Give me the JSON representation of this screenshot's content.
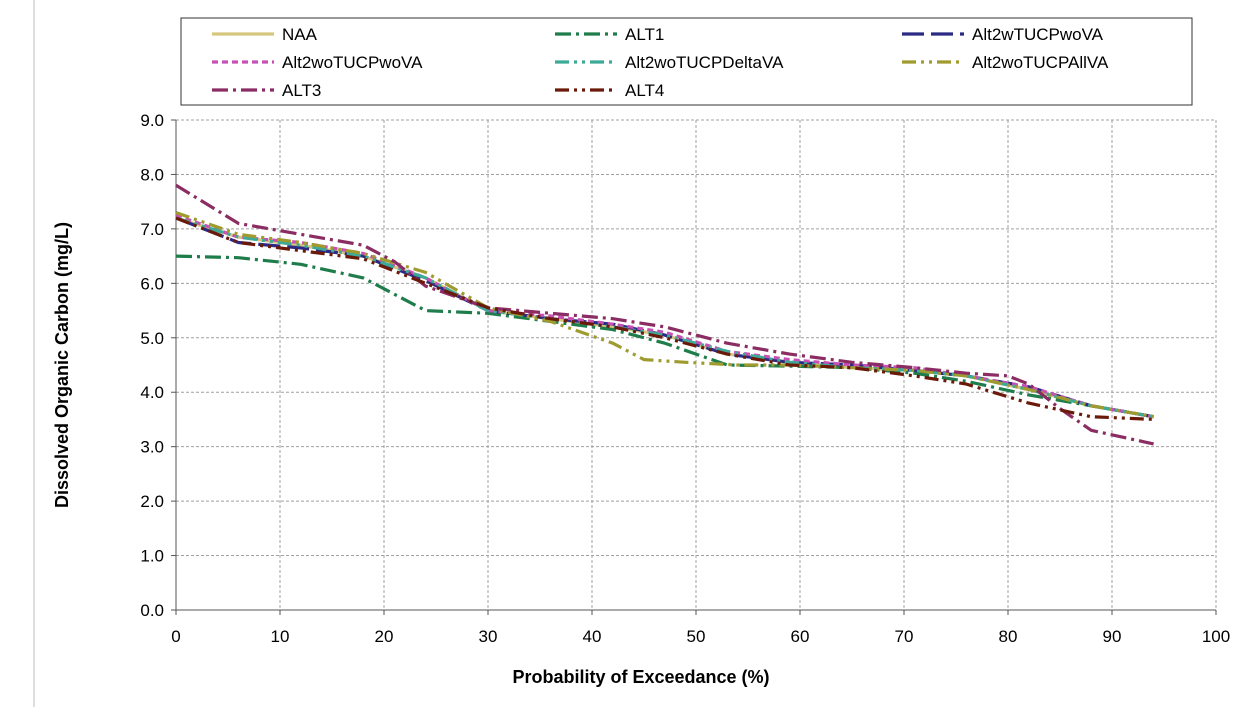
{
  "chart_data": {
    "type": "line",
    "title": "",
    "xlabel": "Probability of Exceedance (%)",
    "ylabel": "Dissolved Organic Carbon (mg/L)",
    "xlim": [
      0,
      100
    ],
    "ylim": [
      0,
      9
    ],
    "xticks": [
      "0",
      "10",
      "20",
      "30",
      "40",
      "50",
      "60",
      "70",
      "80",
      "90",
      "100"
    ],
    "yticks": [
      "0.0",
      "1.0",
      "2.0",
      "3.0",
      "4.0",
      "5.0",
      "6.0",
      "7.0",
      "8.0",
      "9.0"
    ],
    "grid": true,
    "legend_position": "top",
    "series": [
      {
        "name": "NAA",
        "color": "#d6c77e",
        "dash": "solid",
        "x": [
          0,
          6,
          12,
          18,
          24,
          30,
          36,
          42,
          47,
          53,
          59,
          65,
          71,
          76,
          82,
          88,
          94
        ],
        "y": [
          7.2,
          6.85,
          6.7,
          6.5,
          6.1,
          5.5,
          5.35,
          5.2,
          5.05,
          4.7,
          4.55,
          4.45,
          4.4,
          4.3,
          4.05,
          3.75,
          3.55
        ]
      },
      {
        "name": "ALT1",
        "color": "#1e7d4a",
        "dash": "dashdot",
        "x": [
          0,
          6,
          12,
          18,
          24,
          30,
          36,
          42,
          47,
          53,
          59,
          65,
          71,
          76,
          82,
          88,
          94
        ],
        "y": [
          6.5,
          6.47,
          6.35,
          6.1,
          5.5,
          5.45,
          5.3,
          5.15,
          4.9,
          4.5,
          4.48,
          4.45,
          4.35,
          4.2,
          3.95,
          3.75,
          3.55
        ]
      },
      {
        "name": "Alt2wTUCPwoVA",
        "color": "#2b2a84",
        "dash": "longdash",
        "x": [
          0,
          6,
          12,
          18,
          24,
          30,
          36,
          42,
          47,
          53,
          59,
          65,
          71,
          76,
          82,
          88,
          94
        ],
        "y": [
          7.2,
          6.75,
          6.65,
          6.5,
          6.05,
          5.5,
          5.35,
          5.25,
          5.05,
          4.7,
          4.55,
          4.5,
          4.4,
          4.3,
          4.1,
          3.75,
          3.55
        ]
      },
      {
        "name": "Alt2woTUCPwoVA",
        "color": "#c84fb5",
        "dash": "shortdash",
        "x": [
          0,
          6,
          12,
          18,
          24,
          30,
          36,
          42,
          47,
          53,
          59,
          65,
          71,
          76,
          82,
          88,
          94
        ],
        "y": [
          7.25,
          6.85,
          6.75,
          6.55,
          6.1,
          5.5,
          5.4,
          5.25,
          5.1,
          4.75,
          4.6,
          4.5,
          4.45,
          4.3,
          4.1,
          3.75,
          3.55
        ]
      },
      {
        "name": "Alt2woTUCPDeltaVA",
        "color": "#3daa97",
        "dash": "dashdotdot",
        "x": [
          0,
          6,
          12,
          18,
          24,
          30,
          36,
          42,
          47,
          53,
          59,
          65,
          71,
          76,
          82,
          88,
          94
        ],
        "y": [
          7.2,
          6.85,
          6.7,
          6.5,
          6.1,
          5.5,
          5.35,
          5.2,
          5.05,
          4.75,
          4.55,
          4.45,
          4.4,
          4.3,
          4.05,
          3.75,
          3.55
        ]
      },
      {
        "name": "Alt2woTUCPAllVA",
        "color": "#9f9b2f",
        "dash": "dashdotdot",
        "x": [
          0,
          6,
          12,
          18,
          24,
          30,
          36,
          42,
          45,
          49,
          54,
          59,
          65,
          71,
          76,
          82,
          88,
          94
        ],
        "y": [
          7.3,
          6.9,
          6.75,
          6.55,
          6.2,
          5.55,
          5.3,
          4.9,
          4.6,
          4.55,
          4.5,
          4.5,
          4.45,
          4.4,
          4.3,
          4.05,
          3.75,
          3.55
        ]
      },
      {
        "name": "ALT3",
        "color": "#8b2c63",
        "dash": "dashdot",
        "x": [
          0,
          6,
          12,
          18,
          21,
          24,
          30,
          36,
          42,
          47,
          53,
          59,
          65,
          71,
          76,
          80,
          82,
          85,
          88,
          94
        ],
        "y": [
          7.8,
          7.1,
          6.9,
          6.7,
          6.4,
          5.95,
          5.55,
          5.45,
          5.35,
          5.2,
          4.9,
          4.7,
          4.55,
          4.45,
          4.35,
          4.3,
          4.15,
          3.7,
          3.3,
          3.05
        ]
      },
      {
        "name": "ALT4",
        "color": "#6b1a0a",
        "dash": "dashdotdot",
        "x": [
          0,
          6,
          12,
          18,
          24,
          30,
          36,
          42,
          47,
          53,
          59,
          65,
          71,
          76,
          82,
          88,
          94
        ],
        "y": [
          7.2,
          6.75,
          6.6,
          6.45,
          6.0,
          5.55,
          5.35,
          5.2,
          5.0,
          4.7,
          4.5,
          4.45,
          4.3,
          4.15,
          3.8,
          3.55,
          3.5
        ]
      }
    ]
  }
}
